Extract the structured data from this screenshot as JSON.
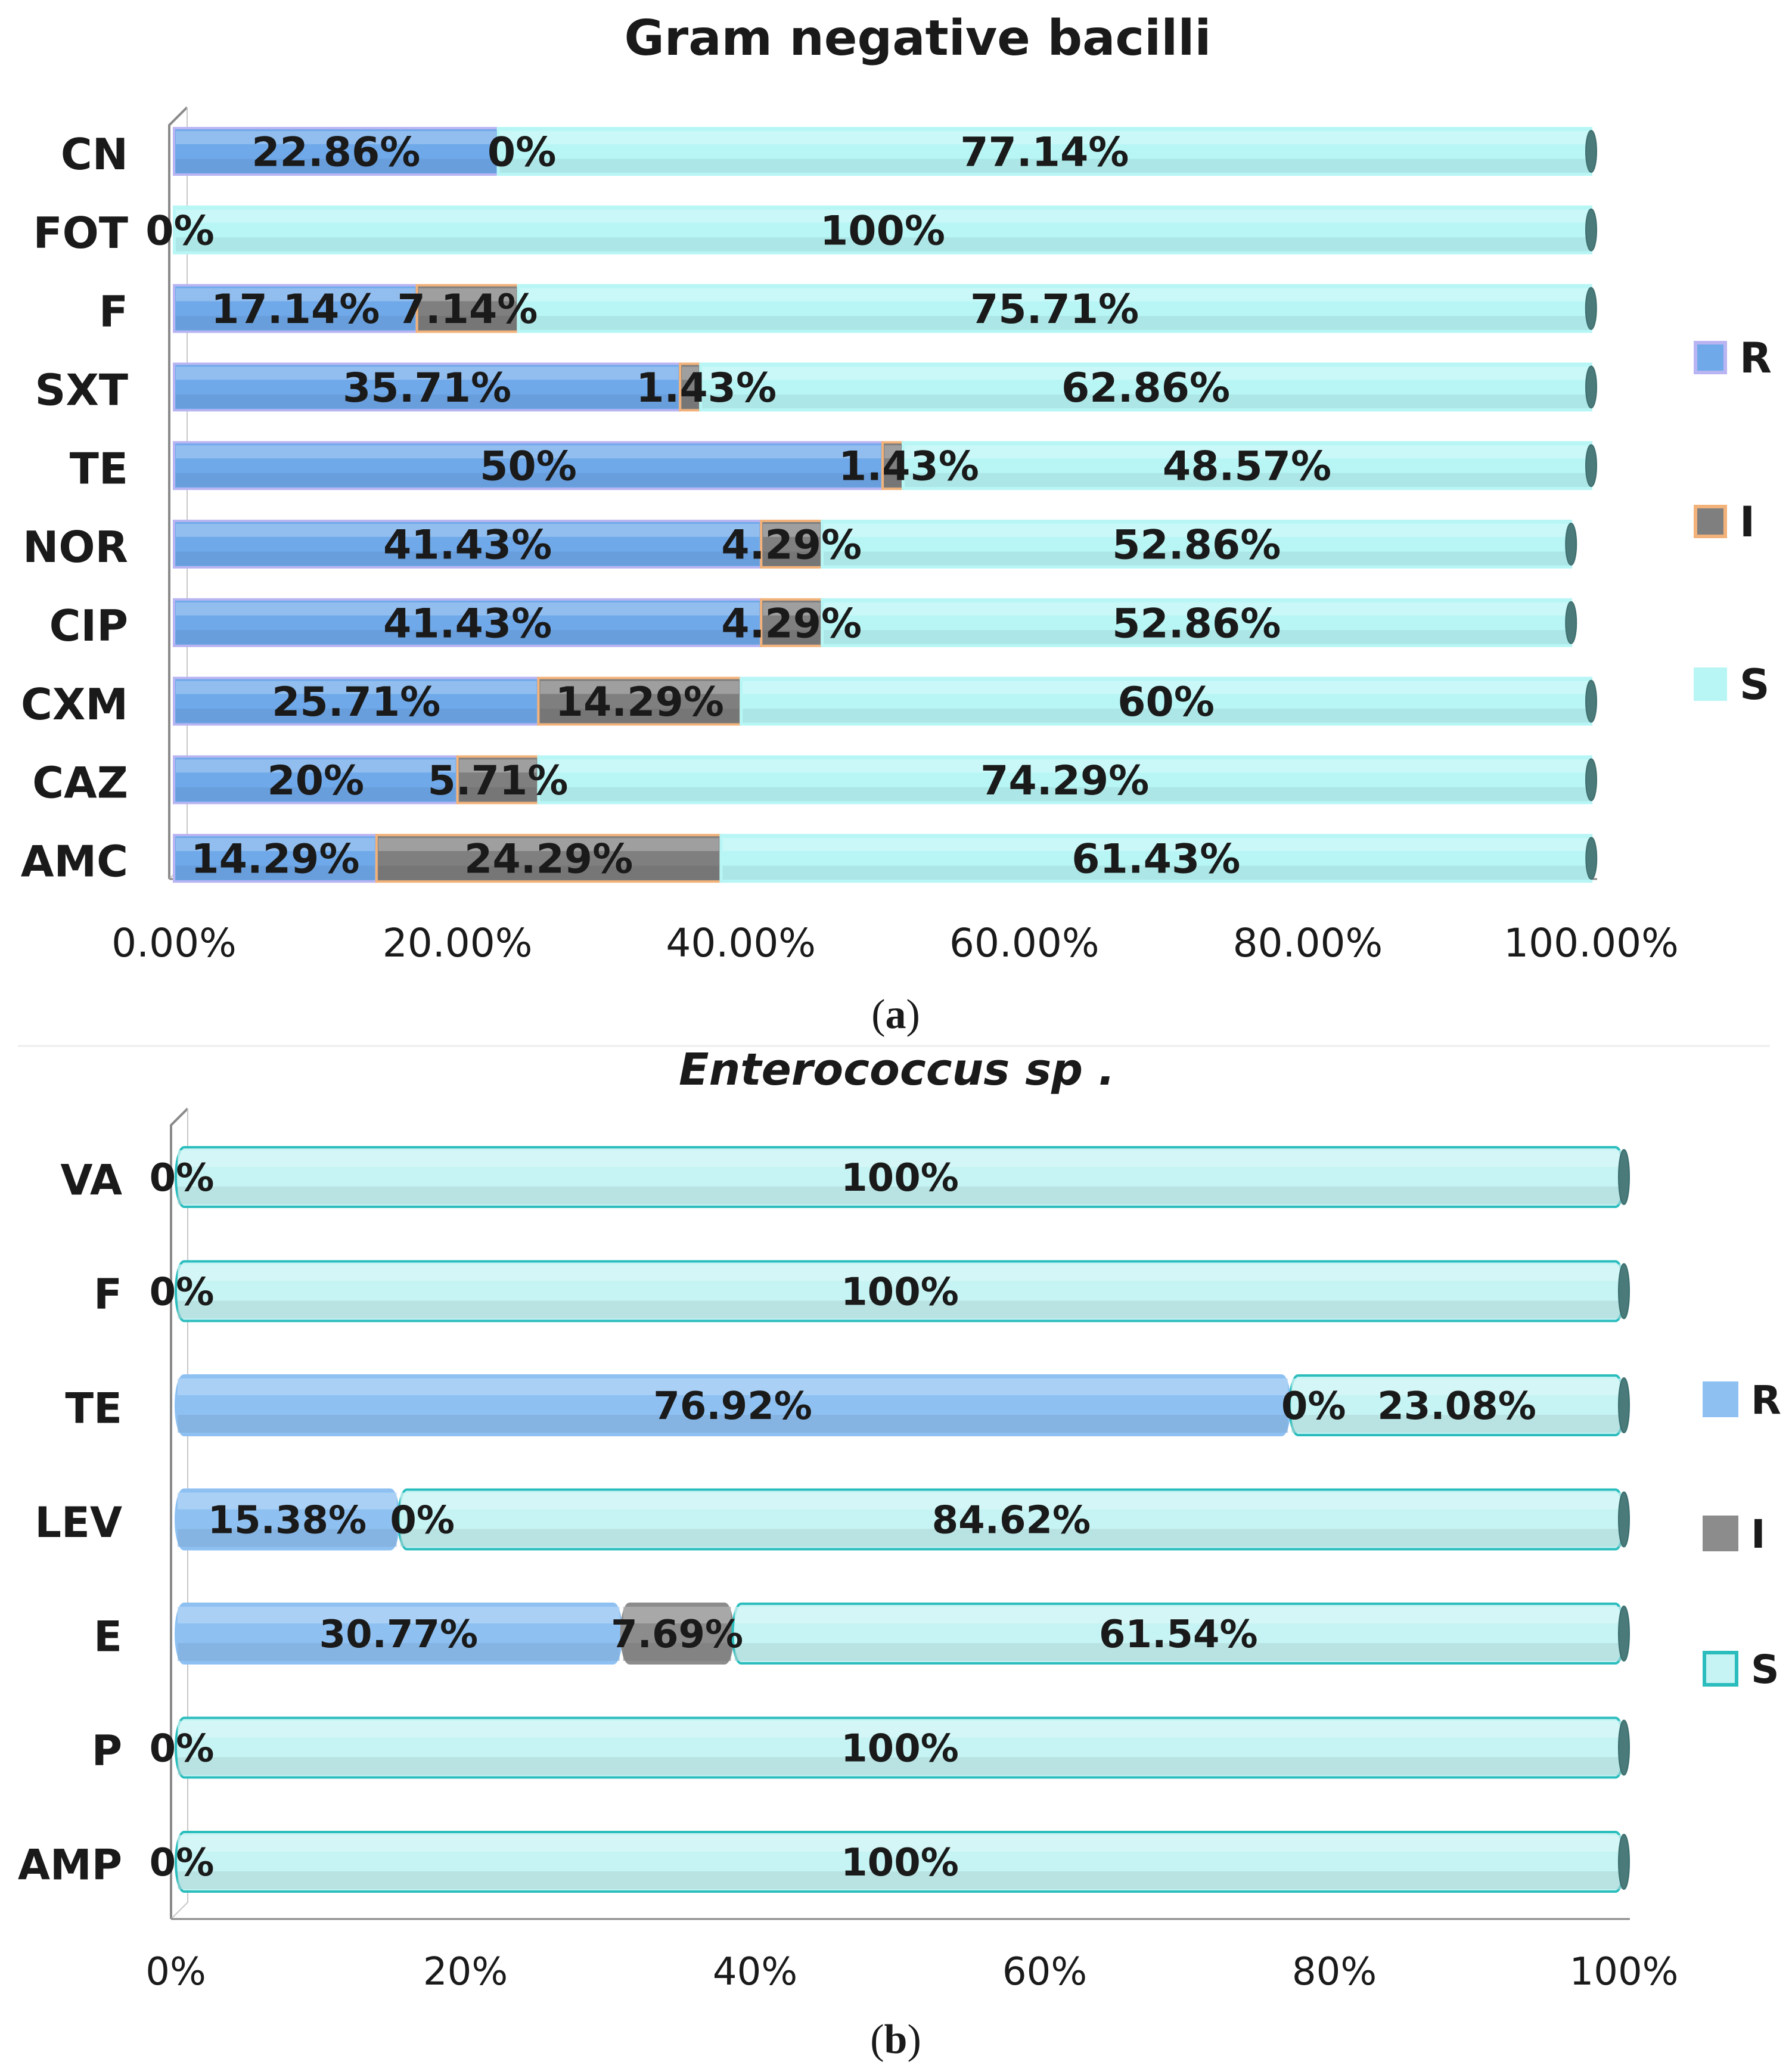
{
  "chart_data": [
    {
      "type": "bar",
      "orientation": "horizontal",
      "stacked": "percent",
      "title": "Gram negative bacilli",
      "title_italic": false,
      "caption": "(a)",
      "categories": [
        "CN",
        "FOT",
        "F",
        "SXT",
        "TE",
        "NOR",
        "CIP",
        "CXM",
        "CAZ",
        "AMC"
      ],
      "series": [
        {
          "name": "R",
          "color": "#6fa9ea",
          "border": "#b9b4f2",
          "values": [
            22.86,
            0,
            17.14,
            35.71,
            50,
            41.43,
            41.43,
            25.71,
            20,
            14.29
          ],
          "labels": [
            "22.86%",
            "0%",
            "17.14%",
            "35.71%",
            "50%",
            "41.43%",
            "41.43%",
            "25.71%",
            "20%",
            "14.29%"
          ]
        },
        {
          "name": "I",
          "color": "#7f7f7f",
          "border": "#f2b27a",
          "values": [
            0,
            0,
            7.14,
            1.43,
            1.43,
            4.29,
            4.29,
            14.29,
            5.71,
            24.29
          ],
          "labels": [
            "0%",
            "",
            "7.14%",
            "1.43%",
            "1.43%",
            "4.29%",
            "4.29%",
            "14.29%",
            "5.71%",
            "24.29%"
          ]
        },
        {
          "name": "S",
          "color": "#b8f6f6",
          "border": "#b8f6f6",
          "values": [
            77.14,
            100,
            75.71,
            62.86,
            48.57,
            52.86,
            52.86,
            60,
            74.29,
            61.43
          ],
          "labels": [
            "77.14%",
            "100%",
            "75.71%",
            "62.86%",
            "48.57%",
            "52.86%",
            "52.86%",
            "60%",
            "74.29%",
            "61.43%"
          ]
        }
      ],
      "xlim": [
        0,
        100
      ],
      "xticks": [
        "0.00%",
        "20.00%",
        "40.00%",
        "60.00%",
        "80.00%",
        "100.00%"
      ],
      "legend": [
        "R",
        "I",
        "S"
      ],
      "legend_position": "right"
    },
    {
      "type": "bar",
      "orientation": "horizontal",
      "stacked": "percent",
      "title": "Enterococcus sp .",
      "title_italic": true,
      "caption": "(b)",
      "categories": [
        "VA",
        "F",
        "TE",
        "LEV",
        "E",
        "P",
        "AMP"
      ],
      "series": [
        {
          "name": "R",
          "color": "#8ec1f2",
          "border": "#8ec1f2",
          "values": [
            0,
            0,
            76.92,
            15.38,
            30.77,
            0,
            0
          ],
          "labels": [
            "0%",
            "0%",
            "76.92%",
            "15.38%",
            "30.77%",
            "0%",
            "0%"
          ]
        },
        {
          "name": "I",
          "color": "#8c8c8c",
          "border": "#8c8c8c",
          "values": [
            0,
            0,
            0,
            0,
            7.69,
            0,
            0
          ],
          "labels": [
            "",
            "",
            "0%",
            "0%",
            "7.69%",
            "",
            ""
          ]
        },
        {
          "name": "S",
          "color": "#c6f3f3",
          "border": "#2bbdbd",
          "values": [
            100,
            100,
            23.08,
            84.62,
            61.54,
            100,
            100
          ],
          "labels": [
            "100%",
            "100%",
            "23.08%",
            "84.62%",
            "61.54%",
            "100%",
            "100%"
          ]
        }
      ],
      "xlim": [
        0,
        100
      ],
      "xticks": [
        "0%",
        "20%",
        "40%",
        "60%",
        "80%",
        "100%"
      ],
      "legend": [
        "R",
        "I",
        "S"
      ],
      "legend_position": "right"
    }
  ]
}
